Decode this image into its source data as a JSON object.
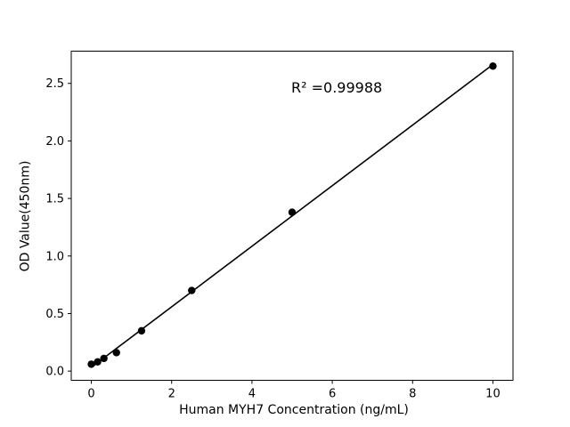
{
  "chart_data": {
    "type": "scatter",
    "title": "",
    "xlabel": "Human MYH7 Concentration (ng/mL)",
    "ylabel": "OD Value(450nm)",
    "annotation": "R² =0.99988",
    "x": [
      0,
      0.156,
      0.3125,
      0.625,
      1.25,
      2.5,
      5,
      10
    ],
    "y": [
      0.06,
      0.08,
      0.11,
      0.16,
      0.35,
      0.7,
      1.38,
      2.65
    ],
    "trendline": {
      "x": [
        0,
        10
      ],
      "y": [
        0.032,
        2.664
      ]
    },
    "xlim": [
      -0.5,
      10.5
    ],
    "ylim": [
      -0.08,
      2.78
    ],
    "xticks": {
      "values": [
        0,
        2,
        4,
        6,
        8,
        10
      ],
      "labels": [
        "0",
        "2",
        "4",
        "6",
        "8",
        "10"
      ]
    },
    "yticks": {
      "values": [
        0,
        0.5,
        1,
        1.5,
        2,
        2.5
      ],
      "labels": [
        "0.0",
        "0.5",
        "1.0",
        "1.5",
        "2.0",
        "2.5"
      ]
    },
    "grid": false,
    "legend_position": "none",
    "marker_color": "#000000",
    "line_color": "#000000",
    "spine_color": "#000000",
    "background_color": "#ffffff",
    "text_color": "#000000"
  }
}
